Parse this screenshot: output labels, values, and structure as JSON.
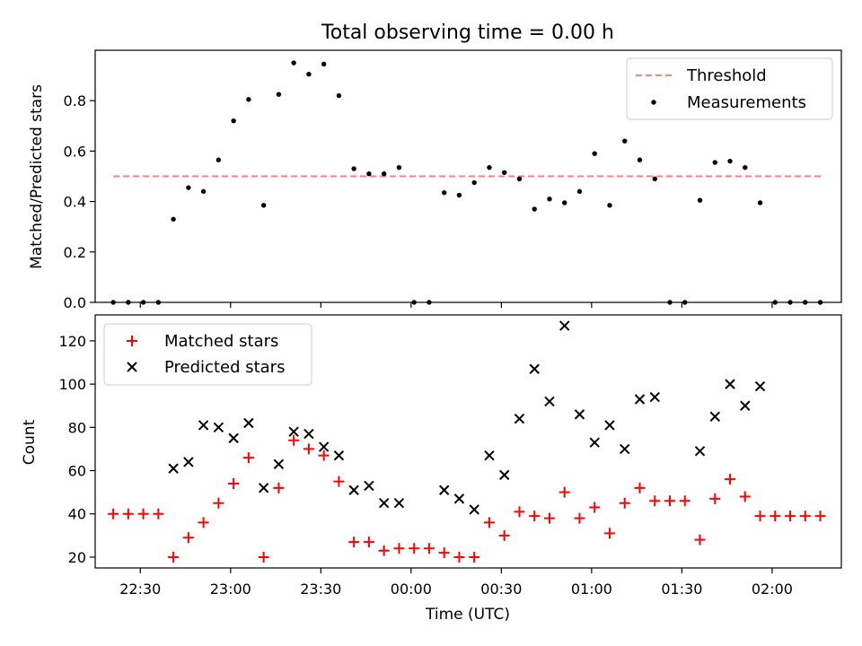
{
  "figure": {
    "title": "Total observing time = 0.00 h",
    "xlabel": "Time (UTC)"
  },
  "chart_data": [
    {
      "type": "scatter",
      "ylabel": "Matched/Predicted stars",
      "xlim": [
        "22:15",
        "02:23"
      ],
      "ylim": [
        0,
        1.0
      ],
      "yticks": [
        0.0,
        0.2,
        0.4,
        0.6,
        0.8
      ],
      "legend": {
        "placement": "top-right",
        "entries": [
          "Threshold",
          "Measurements"
        ]
      },
      "threshold": {
        "name": "Threshold",
        "value": 0.5,
        "x_start": "22:21",
        "x_end": "02:17",
        "color": "#ff7f7f"
      },
      "series": [
        {
          "name": "Measurements",
          "color": "#000000",
          "x": [
            "22:21",
            "22:26",
            "22:31",
            "22:36",
            "22:41",
            "22:46",
            "22:51",
            "22:56",
            "23:01",
            "23:06",
            "23:11",
            "23:16",
            "23:21",
            "23:26",
            "23:31",
            "23:36",
            "23:41",
            "23:46",
            "23:51",
            "23:56",
            "00:01",
            "00:06",
            "00:11",
            "00:16",
            "00:21",
            "00:26",
            "00:31",
            "00:36",
            "00:41",
            "00:46",
            "00:51",
            "00:56",
            "01:01",
            "01:06",
            "01:11",
            "01:16",
            "01:21",
            "01:26",
            "01:31",
            "01:36",
            "01:41",
            "01:46",
            "01:51",
            "01:56",
            "02:01",
            "02:06",
            "02:11",
            "02:16"
          ],
          "y": [
            0,
            0,
            0,
            0,
            0.33,
            0.455,
            0.44,
            0.565,
            0.72,
            0.805,
            0.385,
            0.825,
            0.95,
            0.905,
            0.945,
            0.82,
            0.53,
            0.51,
            0.51,
            0.535,
            0,
            0,
            0.435,
            0.425,
            0.475,
            0.535,
            0.515,
            0.49,
            0.37,
            0.41,
            0.395,
            0.44,
            0.59,
            0.385,
            0.64,
            0.565,
            0.49,
            0,
            0,
            0.405,
            0.555,
            0.56,
            0.535,
            0.395,
            0,
            0,
            0,
            0
          ]
        }
      ]
    },
    {
      "type": "scatter",
      "ylabel": "Count",
      "xlim": [
        "22:15",
        "02:23"
      ],
      "ylim": [
        15,
        132
      ],
      "yticks": [
        20,
        40,
        60,
        80,
        100,
        120
      ],
      "xticks": [
        "22:30",
        "23:00",
        "23:30",
        "00:00",
        "00:30",
        "01:00",
        "01:30",
        "02:00"
      ],
      "legend": {
        "placement": "top-left",
        "entries": [
          "Matched stars",
          "Predicted stars"
        ]
      },
      "series": [
        {
          "name": "Matched stars",
          "marker": "plus",
          "color": "#ff0000",
          "x": [
            "22:21",
            "22:26",
            "22:31",
            "22:36",
            "22:41",
            "22:46",
            "22:51",
            "22:56",
            "23:01",
            "23:06",
            "23:11",
            "23:16",
            "23:21",
            "23:26",
            "23:31",
            "23:36",
            "23:41",
            "23:46",
            "23:51",
            "23:56",
            "00:01",
            "00:06",
            "00:11",
            "00:16",
            "00:21",
            "00:26",
            "00:31",
            "00:36",
            "00:41",
            "00:46",
            "00:51",
            "00:56",
            "01:01",
            "01:06",
            "01:11",
            "01:16",
            "01:21",
            "01:26",
            "01:31",
            "01:36",
            "01:41",
            "01:46",
            "01:51",
            "01:56",
            "02:01",
            "02:06",
            "02:11",
            "02:16"
          ],
          "y": [
            40,
            40,
            40,
            40,
            20,
            29,
            36,
            45,
            54,
            66,
            20,
            52,
            74,
            70,
            67,
            55,
            27,
            27,
            23,
            24,
            24,
            24,
            22,
            20,
            20,
            36,
            30,
            41,
            39,
            38,
            50,
            38,
            43,
            31,
            45,
            52,
            46,
            46,
            46,
            28,
            47,
            56,
            48,
            39,
            39,
            39,
            39,
            39
          ]
        },
        {
          "name": "Predicted stars",
          "marker": "x",
          "color": "#000000",
          "x": [
            "22:41",
            "22:46",
            "22:51",
            "22:56",
            "23:01",
            "23:06",
            "23:11",
            "23:16",
            "23:21",
            "23:26",
            "23:31",
            "23:36",
            "23:41",
            "23:46",
            "23:51",
            "23:56",
            "00:11",
            "00:16",
            "00:21",
            "00:26",
            "00:31",
            "00:36",
            "00:41",
            "00:46",
            "00:51",
            "00:56",
            "01:01",
            "01:06",
            "01:11",
            "01:16",
            "01:21",
            "01:36",
            "01:41",
            "01:46",
            "01:51",
            "01:56"
          ],
          "y": [
            61,
            64,
            81,
            80,
            75,
            82,
            52,
            63,
            78,
            77,
            71,
            67,
            51,
            53,
            45,
            45,
            51,
            47,
            42,
            67,
            58,
            84,
            107,
            92,
            127,
            86,
            73,
            81,
            70,
            93,
            94,
            69,
            85,
            100,
            90,
            99
          ]
        }
      ]
    }
  ]
}
